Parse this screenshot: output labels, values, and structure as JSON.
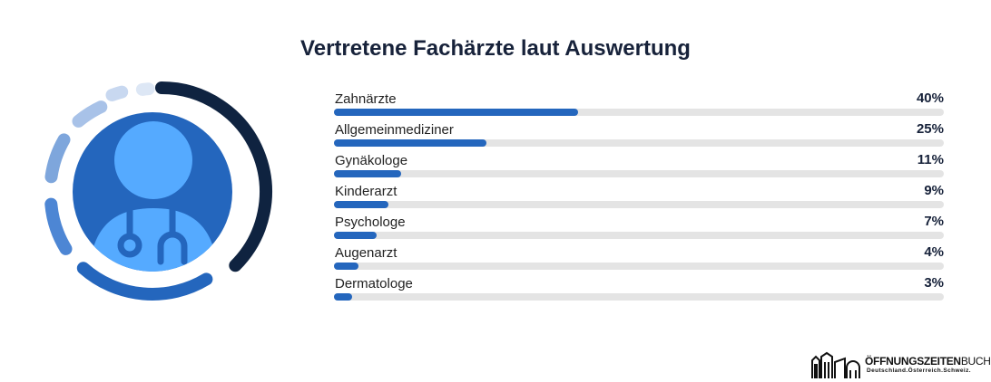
{
  "chart_data": {
    "type": "bar",
    "orientation": "horizontal",
    "title": "Vertretene Fachärzte laut Auswertung",
    "categories": [
      "Zahnärzte",
      "Allgemeinmediziner",
      "Gynäkologe",
      "Kinderarzt",
      "Psychologe",
      "Augenarzt",
      "Dermatologe"
    ],
    "values": [
      40,
      25,
      11,
      9,
      7,
      4,
      3
    ],
    "value_labels": [
      "40%",
      "25%",
      "11%",
      "9%",
      "7%",
      "4%",
      "3%"
    ],
    "xlim": [
      0,
      100
    ],
    "grid": false,
    "legend": "none",
    "colors": {
      "bar": "#2466bd",
      "track": "#e4e4e4"
    }
  },
  "illustration": {
    "icon": "doctor-with-stethoscope-icon",
    "colors": {
      "disc": "#2466bd",
      "figure": "#55aaff",
      "stethoscope": "#2466bd",
      "arc_dark": "#0f2340",
      "arc_blue": "#2466bd",
      "arc_mid": "#4d86d4",
      "arc_light1": "#7ea6dc",
      "arc_light2": "#a8c2e8",
      "arc_light3": "#c8d8f0",
      "arc_light4": "#dde7f5"
    }
  },
  "logo": {
    "icon": "building-icon",
    "name_bold": "ÖFFNUNGSZEITEN",
    "name_light": "BUCH",
    "tagline": "Deutschland.Österreich.Schweiz."
  }
}
